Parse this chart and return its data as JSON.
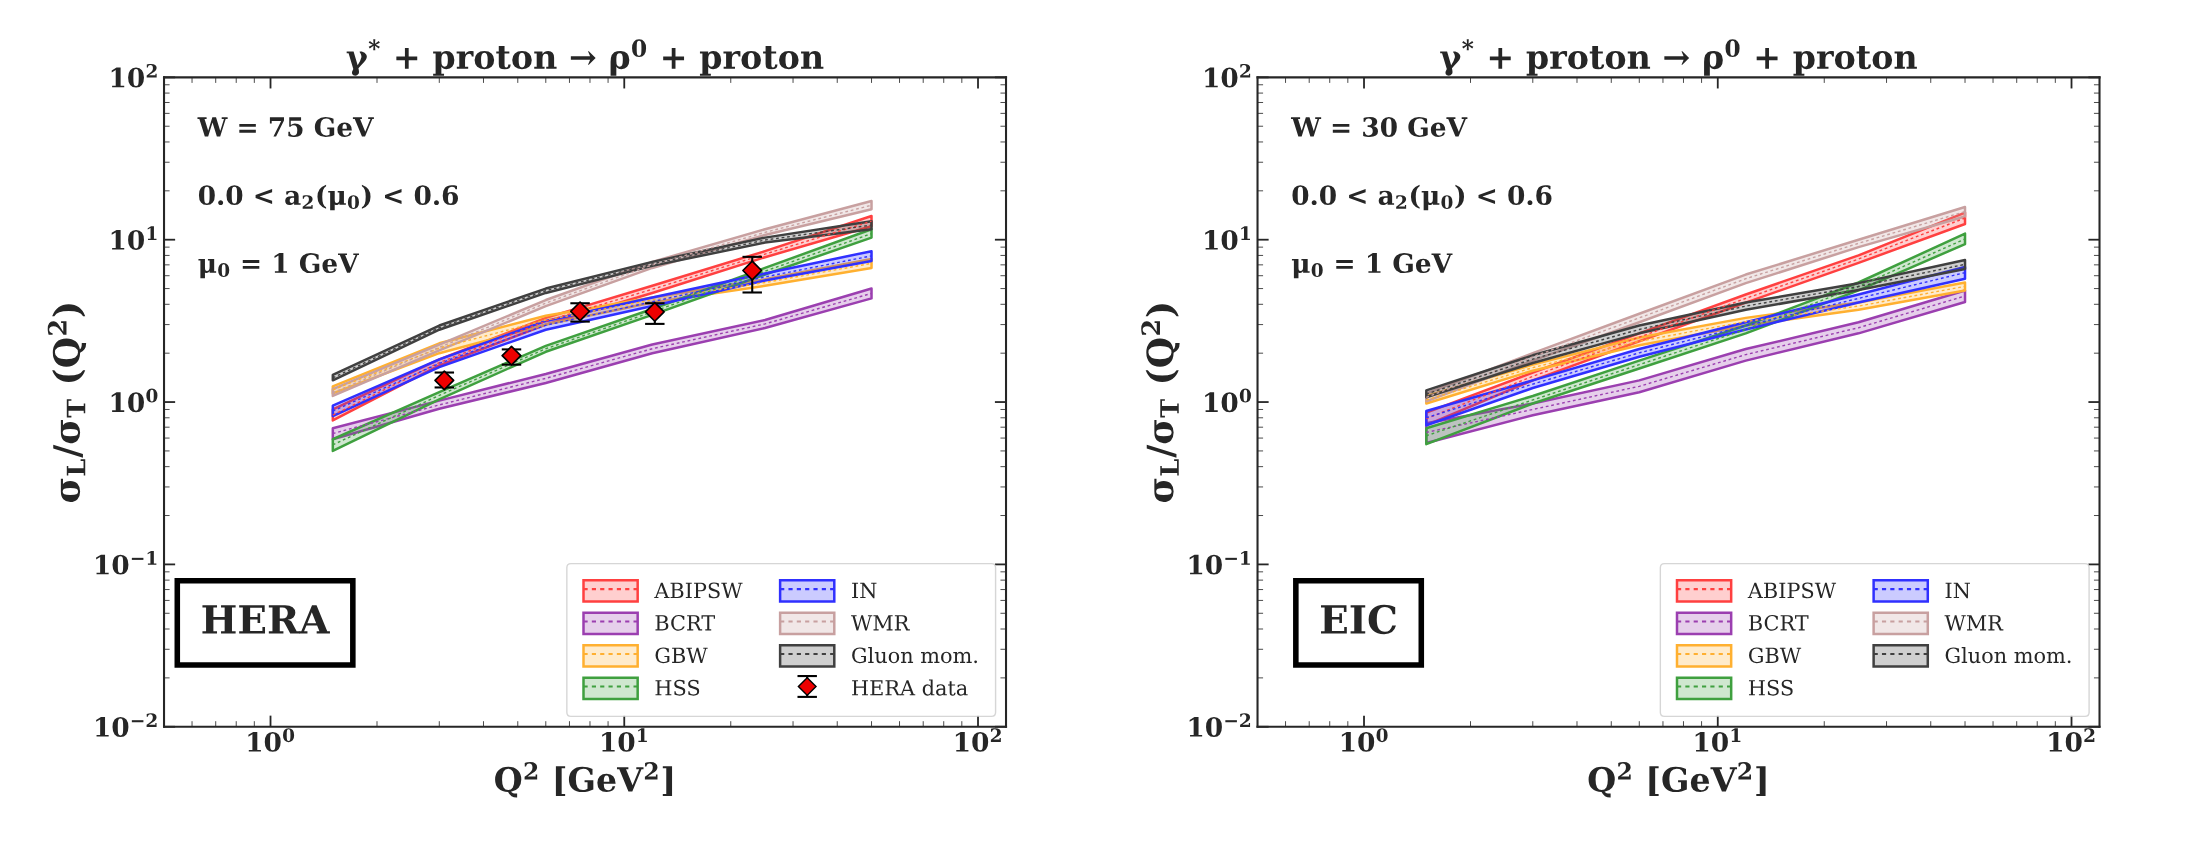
{
  "chart_data": [
    {
      "type": "line",
      "title": "γ$^{*}$ + proton → ρ$^{0}$ + proton",
      "xlabel": "Q$^{2}$ [GeV$^{2}$]",
      "ylabel": "σ$_{L}$/σ$_{T}$ (Q$^{2}$)",
      "log": "xy",
      "xlim": [
        0.5,
        120
      ],
      "ylim": [
        0.01,
        100
      ],
      "xticks": [
        {
          "value": 1,
          "label": "10$^{0}$"
        },
        {
          "value": 10,
          "label": "10$^{1}$"
        },
        {
          "value": 100,
          "label": "10$^{2}$"
        }
      ],
      "yticks": [
        {
          "value": 0.01,
          "label": "10$^{−2}$"
        },
        {
          "value": 0.1,
          "label": "10$^{−1}$"
        },
        {
          "value": 1,
          "label": "10$^{0}$"
        },
        {
          "value": 10,
          "label": "10$^{1}$"
        },
        {
          "value": 100,
          "label": "10$^{2}$"
        }
      ],
      "legend": "bottom right",
      "line_style": "dashed",
      "annotations": [
        "W = 75 GeV",
        "0.0 < a$_{2}$(μ$_{0}$) < 0.6",
        "μ$_{0}$ = 1 GeV",
        "HERA"
      ],
      "series": [
        {
          "name": "ABIPSW",
          "color": "#ff4040",
          "x": [
            1.5,
            3,
            6,
            12,
            25,
            50
          ],
          "values": [
            0.83,
            1.75,
            3.15,
            4.95,
            8.15,
            13.0
          ],
          "lower": [
            0.77,
            1.68,
            3.0,
            4.7,
            7.8,
            12.1
          ],
          "upper": [
            0.9,
            1.83,
            3.3,
            5.2,
            8.5,
            14.0
          ]
        },
        {
          "name": "BCRT",
          "color": "#9b3fb0",
          "x": [
            1.5,
            3,
            6,
            12,
            25,
            50
          ],
          "values": [
            0.64,
            0.96,
            1.4,
            2.13,
            3.03,
            4.67
          ],
          "lower": [
            0.59,
            0.91,
            1.31,
            2.0,
            2.86,
            4.35
          ],
          "upper": [
            0.69,
            1.02,
            1.49,
            2.26,
            3.2,
            5.0
          ]
        },
        {
          "name": "GBW",
          "color": "#ffb030",
          "x": [
            1.5,
            3,
            6,
            12,
            25,
            50
          ],
          "values": [
            1.19,
            2.15,
            3.2,
            4.25,
            5.45,
            7.15
          ],
          "lower": [
            1.13,
            2.0,
            3.0,
            4.1,
            5.2,
            6.7
          ],
          "upper": [
            1.25,
            2.3,
            3.4,
            4.4,
            5.7,
            7.6
          ]
        },
        {
          "name": "HSS",
          "color": "#3fa03f",
          "x": [
            1.5,
            3,
            6,
            12,
            25,
            50
          ],
          "values": [
            0.545,
            1.1,
            2.13,
            3.59,
            6.4,
            10.9
          ],
          "lower": [
            0.5,
            1.04,
            2.04,
            3.44,
            6.1,
            10.3
          ],
          "upper": [
            0.59,
            1.15,
            2.22,
            3.74,
            6.7,
            11.6
          ]
        },
        {
          "name": "IN",
          "color": "#3030ff",
          "x": [
            1.5,
            3,
            6,
            12,
            25,
            50
          ],
          "values": [
            0.88,
            1.73,
            2.97,
            4.15,
            5.9,
            7.95
          ],
          "lower": [
            0.82,
            1.64,
            2.79,
            3.9,
            5.6,
            7.4
          ],
          "upper": [
            0.95,
            1.83,
            3.16,
            4.4,
            6.2,
            8.5
          ]
        },
        {
          "name": "WMR",
          "color": "#c8a0a0",
          "x": [
            1.5,
            3,
            6,
            12,
            25,
            50
          ],
          "values": [
            1.14,
            2.17,
            4.07,
            7.0,
            11.1,
            16.3
          ],
          "lower": [
            1.09,
            2.08,
            3.9,
            6.7,
            10.7,
            15.4
          ],
          "upper": [
            1.2,
            2.26,
            4.25,
            7.3,
            11.6,
            17.3
          ]
        },
        {
          "name": "Gluon mom.",
          "color": "#404040",
          "x": [
            1.5,
            3,
            6,
            12,
            25,
            50
          ],
          "values": [
            1.41,
            2.87,
            4.85,
            7.1,
            9.95,
            12.3
          ],
          "lower": [
            1.36,
            2.79,
            4.7,
            6.9,
            9.6,
            11.6
          ],
          "upper": [
            1.47,
            2.96,
            5.0,
            7.3,
            10.3,
            13.0
          ]
        },
        {
          "name": "HERA data",
          "type": "scatter",
          "marker": "diamond",
          "color": "#ee0000",
          "x": [
            3.1,
            4.8,
            7.5,
            12.2,
            23
          ],
          "values": [
            1.36,
            1.93,
            3.62,
            3.59,
            6.46
          ],
          "errors": [
            [
              1.23,
              1.52
            ],
            [
              1.7,
              2.11
            ],
            [
              3.13,
              4.06
            ],
            [
              3.03,
              4.06
            ],
            [
              4.73,
              7.84
            ]
          ]
        }
      ]
    },
    {
      "type": "line",
      "title": "γ$^{*}$ + proton → ρ$^{0}$ + proton",
      "xlabel": "Q$^{2}$ [GeV$^{2}$]",
      "ylabel": "σ$_{L}$/σ$_{T}$ (Q$^{2}$)",
      "log": "xy",
      "xlim": [
        0.5,
        120
      ],
      "ylim": [
        0.01,
        100
      ],
      "xticks": [
        {
          "value": 1,
          "label": "10$^{0}$"
        },
        {
          "value": 10,
          "label": "10$^{1}$"
        },
        {
          "value": 100,
          "label": "10$^{2}$"
        }
      ],
      "yticks": [
        {
          "value": 0.01,
          "label": "10$^{−2}$"
        },
        {
          "value": 0.1,
          "label": "10$^{−1}$"
        },
        {
          "value": 1,
          "label": "10$^{0}$"
        },
        {
          "value": 10,
          "label": "10$^{1}$"
        },
        {
          "value": 100,
          "label": "10$^{2}$"
        }
      ],
      "legend": "bottom right",
      "line_style": "dashed",
      "annotations": [
        "W = 30 GeV",
        "0.0 < a$_{2}$(μ$_{0}$) < 0.6",
        "μ$_{0}$ = 1 GeV",
        "EIC"
      ],
      "series": [
        {
          "name": "ABIPSW",
          "color": "#ff4040",
          "x": [
            1.5,
            3,
            6,
            12,
            25,
            50
          ],
          "values": [
            0.79,
            1.44,
            2.51,
            4.35,
            7.6,
            13.6
          ],
          "lower": [
            0.72,
            1.36,
            2.37,
            4.1,
            7.2,
            12.5
          ],
          "upper": [
            0.86,
            1.52,
            2.65,
            4.6,
            8.0,
            14.7
          ]
        },
        {
          "name": "BCRT",
          "color": "#9b3fb0",
          "x": [
            1.5,
            3,
            6,
            12,
            25,
            50
          ],
          "values": [
            0.65,
            0.9,
            1.25,
            1.96,
            2.87,
            4.5
          ],
          "lower": [
            0.56,
            0.83,
            1.15,
            1.8,
            2.65,
            4.13
          ],
          "upper": [
            0.74,
            0.98,
            1.36,
            2.12,
            3.1,
            4.87
          ]
        },
        {
          "name": "GBW",
          "color": "#ffb030",
          "x": [
            1.5,
            3,
            6,
            12,
            25,
            50
          ],
          "values": [
            1.03,
            1.63,
            2.37,
            3.13,
            3.9,
            5.16
          ],
          "lower": [
            0.98,
            1.56,
            2.24,
            2.96,
            3.7,
            4.87
          ],
          "upper": [
            1.09,
            1.7,
            2.5,
            3.3,
            4.1,
            5.45
          ]
        },
        {
          "name": "HSS",
          "color": "#3fa03f",
          "x": [
            1.5,
            3,
            6,
            12,
            25,
            50
          ],
          "values": [
            0.62,
            1.03,
            1.7,
            2.8,
            5.16,
            10.1
          ],
          "lower": [
            0.55,
            0.98,
            1.61,
            2.65,
            4.87,
            9.4
          ],
          "upper": [
            0.69,
            1.09,
            1.8,
            2.96,
            5.45,
            10.9
          ]
        },
        {
          "name": "IN",
          "color": "#3030ff",
          "x": [
            1.5,
            3,
            6,
            12,
            25,
            50
          ],
          "values": [
            0.8,
            1.29,
            2.01,
            2.95,
            4.35,
            6.27
          ],
          "lower": [
            0.72,
            1.22,
            1.9,
            2.8,
            4.1,
            5.75
          ],
          "upper": [
            0.88,
            1.36,
            2.12,
            3.1,
            4.6,
            6.8
          ]
        },
        {
          "name": "WMR",
          "color": "#c8a0a0",
          "x": [
            1.5,
            3,
            6,
            12,
            25,
            50
          ],
          "values": [
            1.07,
            1.9,
            3.3,
            5.75,
            9.5,
            14.9
          ],
          "lower": [
            1.01,
            1.8,
            3.1,
            5.4,
            9.0,
            13.9
          ],
          "upper": [
            1.13,
            2.0,
            3.5,
            6.1,
            10.0,
            15.9
          ]
        },
        {
          "name": "Gluon mom.",
          "color": "#404040",
          "x": [
            1.5,
            3,
            6,
            12,
            25,
            50
          ],
          "values": [
            1.12,
            1.84,
            2.8,
            3.9,
            5.15,
            7.05
          ],
          "lower": [
            1.07,
            1.74,
            2.65,
            3.7,
            4.9,
            6.6
          ],
          "upper": [
            1.18,
            1.94,
            2.96,
            4.1,
            5.4,
            7.5
          ]
        }
      ]
    }
  ]
}
